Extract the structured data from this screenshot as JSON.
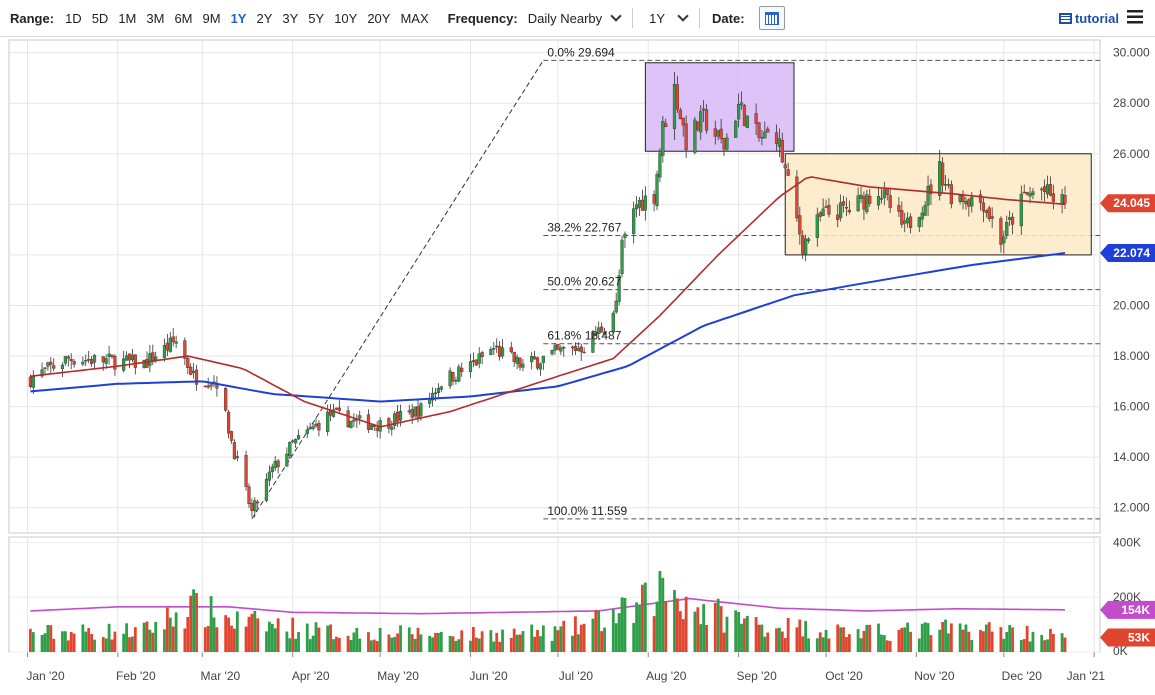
{
  "toolbar": {
    "range_label": "Range:",
    "ranges": [
      "1D",
      "5D",
      "1M",
      "3M",
      "6M",
      "9M",
      "1Y",
      "2Y",
      "3Y",
      "5Y",
      "10Y",
      "20Y",
      "MAX"
    ],
    "active_range": "1Y",
    "frequency_label": "Frequency:",
    "frequency_value": "Daily Nearby",
    "period_value": "1Y",
    "date_label": "Date:",
    "tutorial_label": "tutorial"
  },
  "colors": {
    "up": "#2e9e49",
    "down": "#e0452f",
    "ma50": "#b22a2a",
    "ma200": "#1f3fd6",
    "vol_ma": "#c24ccc",
    "box_purple": "#d7b9f7",
    "box_orange": "#fde9c4"
  },
  "chart_data": {
    "type": "candlestick",
    "x_ticks": [
      "Jan '20",
      "Feb '20",
      "Mar '20",
      "Apr '20",
      "May '20",
      "Jun '20",
      "Jul '20",
      "Aug '20",
      "Sep '20",
      "Oct '20",
      "Nov '20",
      "Dec '20",
      "Jan '21"
    ],
    "y_ticks": [
      "30.000",
      "28.000",
      "26.000",
      "24.000",
      "22.000",
      "20.000",
      "18.000",
      "16.000",
      "14.000",
      "12.000"
    ],
    "ylim": [
      11,
      30.5
    ],
    "price_tags": [
      {
        "label": "24.045",
        "value": 24.045,
        "color": "#e0452f"
      },
      {
        "label": "22.074",
        "value": 22.074,
        "color": "#1f3fd6"
      }
    ],
    "fib_levels": [
      {
        "label": "0.0% 29.694",
        "value": 29.694
      },
      {
        "label": "38.2% 22.767",
        "value": 22.767
      },
      {
        "label": "50.0% 20.627",
        "value": 20.627
      },
      {
        "label": "61.8% 18.487",
        "value": 18.487
      },
      {
        "label": "100.0% 11.559",
        "value": 11.559
      }
    ],
    "boxes": [
      {
        "name": "resistance-zone",
        "start": "2020-07-31",
        "end": "2020-09-20",
        "low": 26.1,
        "high": 29.6,
        "color": "#d7b9f7"
      },
      {
        "name": "consolidation-zone",
        "start": "2020-09-17",
        "end": "2020-12-31",
        "low": 22.0,
        "high": 26.0,
        "color": "#fde9c4"
      }
    ],
    "trendline": {
      "from": {
        "date": "2020-03-18",
        "value": 11.559
      },
      "to": {
        "date": "2020-06-26",
        "value": 29.694
      }
    },
    "price_anchors": [
      [
        "2020-01-02",
        17.1
      ],
      [
        "2020-01-15",
        17.9
      ],
      [
        "2020-01-31",
        17.8
      ],
      [
        "2020-02-10",
        17.7
      ],
      [
        "2020-02-21",
        18.6
      ],
      [
        "2020-02-27",
        17.2
      ],
      [
        "2020-03-06",
        17.0
      ],
      [
        "2020-03-12",
        14.2
      ],
      [
        "2020-03-18",
        11.8
      ],
      [
        "2020-03-25",
        13.5
      ],
      [
        "2020-04-01",
        14.5
      ],
      [
        "2020-04-14",
        15.7
      ],
      [
        "2020-04-22",
        15.4
      ],
      [
        "2020-05-01",
        15.3
      ],
      [
        "2020-05-15",
        15.9
      ],
      [
        "2020-05-22",
        17.0
      ],
      [
        "2020-06-01",
        17.6
      ],
      [
        "2020-06-09",
        18.3
      ],
      [
        "2020-06-19",
        17.6
      ],
      [
        "2020-06-30",
        18.1
      ],
      [
        "2020-07-10",
        18.4
      ],
      [
        "2020-07-17",
        19.2
      ],
      [
        "2020-07-21",
        20.0
      ],
      [
        "2020-07-23",
        22.3
      ],
      [
        "2020-07-28",
        24.0
      ],
      [
        "2020-08-03",
        24.4
      ],
      [
        "2020-08-06",
        27.0
      ],
      [
        "2020-08-10",
        28.6
      ],
      [
        "2020-08-14",
        26.5
      ],
      [
        "2020-08-20",
        27.4
      ],
      [
        "2020-08-27",
        26.3
      ],
      [
        "2020-09-01",
        27.9
      ],
      [
        "2020-09-08",
        26.6
      ],
      [
        "2020-09-14",
        26.8
      ],
      [
        "2020-09-18",
        24.8
      ],
      [
        "2020-09-23",
        22.4
      ],
      [
        "2020-09-30",
        23.6
      ],
      [
        "2020-10-09",
        23.8
      ],
      [
        "2020-10-19",
        24.6
      ],
      [
        "2020-10-28",
        23.0
      ],
      [
        "2020-11-04",
        24.2
      ],
      [
        "2020-11-09",
        25.4
      ],
      [
        "2020-11-13",
        24.4
      ],
      [
        "2020-11-24",
        24.1
      ],
      [
        "2020-11-30",
        22.6
      ],
      [
        "2020-12-08",
        24.3
      ],
      [
        "2020-12-14",
        24.6
      ],
      [
        "2020-12-18",
        24.2
      ],
      [
        "2020-12-22",
        24.045
      ]
    ],
    "ma50_anchors": [
      [
        "2020-01-02",
        17.2
      ],
      [
        "2020-02-01",
        17.6
      ],
      [
        "2020-02-25",
        18.0
      ],
      [
        "2020-03-15",
        17.5
      ],
      [
        "2020-04-05",
        16.2
      ],
      [
        "2020-05-01",
        15.2
      ],
      [
        "2020-05-25",
        15.8
      ],
      [
        "2020-06-15",
        16.6
      ],
      [
        "2020-07-01",
        17.2
      ],
      [
        "2020-07-20",
        17.9
      ],
      [
        "2020-08-05",
        19.6
      ],
      [
        "2020-08-25",
        22.0
      ],
      [
        "2020-09-15",
        24.3
      ],
      [
        "2020-09-25",
        25.1
      ],
      [
        "2020-10-15",
        24.7
      ],
      [
        "2020-11-15",
        24.4
      ],
      [
        "2020-12-01",
        24.2
      ],
      [
        "2020-12-22",
        24.0
      ]
    ],
    "ma200_anchors": [
      [
        "2020-01-02",
        16.6
      ],
      [
        "2020-02-01",
        16.9
      ],
      [
        "2020-03-01",
        17.0
      ],
      [
        "2020-03-25",
        16.5
      ],
      [
        "2020-05-01",
        16.2
      ],
      [
        "2020-06-01",
        16.4
      ],
      [
        "2020-07-01",
        16.8
      ],
      [
        "2020-07-25",
        17.6
      ],
      [
        "2020-08-20",
        19.2
      ],
      [
        "2020-09-20",
        20.4
      ],
      [
        "2020-10-20",
        21.0
      ],
      [
        "2020-11-20",
        21.6
      ],
      [
        "2020-12-22",
        22.074
      ]
    ],
    "volume": {
      "y_ticks": [
        "400K",
        "200K",
        "0K"
      ],
      "ylim": [
        0,
        420
      ],
      "tags": [
        {
          "label": "154K",
          "value": 154,
          "color": "#c24ccc"
        },
        {
          "label": "53K",
          "value": 53,
          "color": "#e0452f"
        }
      ],
      "base_anchors": [
        [
          "2020-01-02",
          68
        ],
        [
          "2020-02-10",
          75
        ],
        [
          "2020-02-26",
          160
        ],
        [
          "2020-03-12",
          110
        ],
        [
          "2020-04-15",
          70
        ],
        [
          "2020-06-01",
          62
        ],
        [
          "2020-07-01",
          70
        ],
        [
          "2020-07-28",
          150
        ],
        [
          "2020-08-06",
          235
        ],
        [
          "2020-08-20",
          145
        ],
        [
          "2020-09-10",
          95
        ],
        [
          "2020-10-15",
          68
        ],
        [
          "2020-11-10",
          80
        ],
        [
          "2020-12-01",
          78
        ],
        [
          "2020-12-22",
          55
        ]
      ],
      "ma_anchors": [
        [
          "2020-01-02",
          150
        ],
        [
          "2020-02-01",
          165
        ],
        [
          "2020-03-10",
          165
        ],
        [
          "2020-04-01",
          145
        ],
        [
          "2020-05-15",
          140
        ],
        [
          "2020-07-15",
          150
        ],
        [
          "2020-08-01",
          175
        ],
        [
          "2020-08-15",
          195
        ],
        [
          "2020-09-15",
          160
        ],
        [
          "2020-10-15",
          150
        ],
        [
          "2020-11-15",
          158
        ],
        [
          "2020-12-22",
          154
        ]
      ]
    }
  }
}
